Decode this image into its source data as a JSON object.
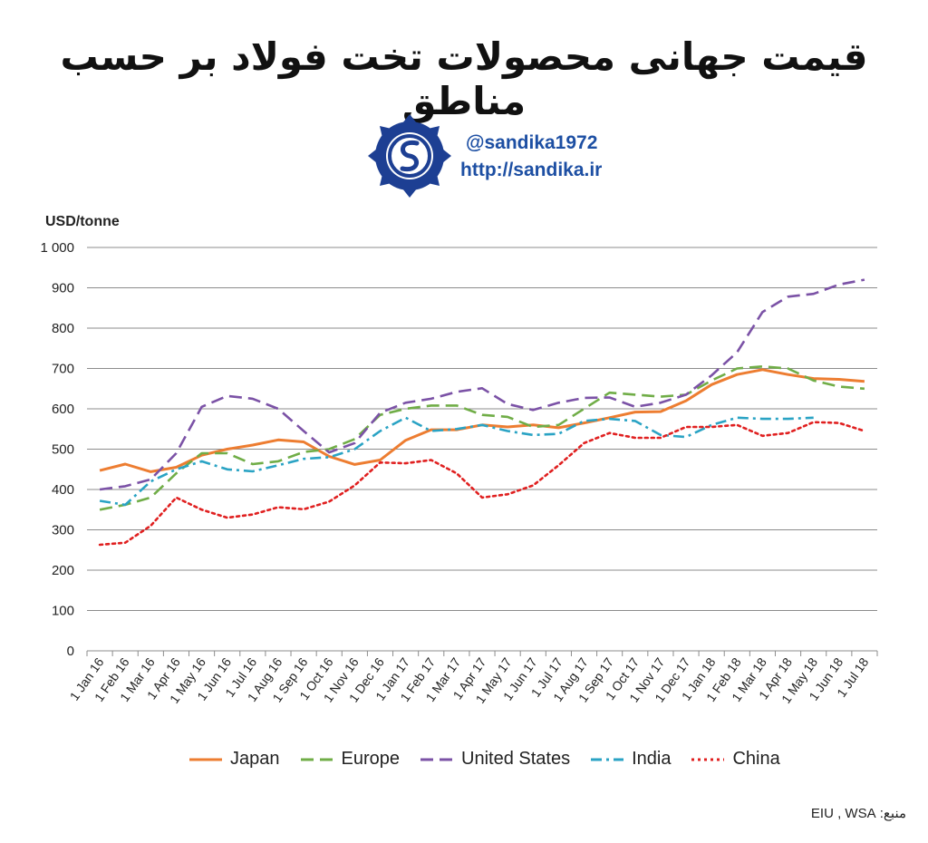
{
  "header": {
    "title": "قیمت جهانی محصولات تخت فولاد بر حسب مناطق",
    "handle": "@sandika1972",
    "website": "http://sandika.ir"
  },
  "source_note": "منبع: EIU , WSA",
  "chart_data": {
    "type": "line",
    "ylabel": "USD/tonne",
    "ylim": [
      0,
      1000
    ],
    "yticks": [
      "0",
      "100",
      "200",
      "300",
      "400",
      "500",
      "600",
      "700",
      "800",
      "900",
      "1 000"
    ],
    "categories": [
      "1 Jan 16",
      "1 Feb 16",
      "1 Mar 16",
      "1 Apr 16",
      "1 May 16",
      "1 Jun 16",
      "1 Jul 16",
      "1 Aug 16",
      "1 Sep 16",
      "1 Oct 16",
      "1 Nov 16",
      "1 Dec 16",
      "1 Jan 17",
      "1 Feb 17",
      "1 Mar 17",
      "1 Apr 17",
      "1 May 17",
      "1 Jun 17",
      "1 Jul 17",
      "1 Aug 17",
      "1 Sep 17",
      "1 Oct 17",
      "1 Nov 17",
      "1 Dec 17",
      "1 Jan 18",
      "1 Feb 18",
      "1 Mar 18",
      "1 Apr 18",
      "1 May 18",
      "1 Jun 18",
      "1 Jul 18"
    ],
    "grid": true,
    "legend_position": "bottom",
    "series": [
      {
        "name": "Japan",
        "color": "#ed7d31",
        "dash": "solid",
        "values": [
          447,
          463,
          444,
          455,
          485,
          500,
          510,
          523,
          518,
          482,
          462,
          473,
          522,
          548,
          548,
          560,
          555,
          560,
          553,
          565,
          578,
          592,
          593,
          620,
          660,
          685,
          697,
          685,
          675,
          673,
          668
        ]
      },
      {
        "name": "Europe",
        "color": "#70ad47",
        "dash": "dash",
        "values": [
          350,
          362,
          380,
          440,
          490,
          490,
          463,
          470,
          493,
          500,
          525,
          585,
          600,
          608,
          608,
          585,
          580,
          555,
          560,
          600,
          640,
          635,
          630,
          635,
          670,
          700,
          705,
          700,
          670,
          655,
          650
        ]
      },
      {
        "name": "United States",
        "color": "#7b52a6",
        "dash": "dash",
        "values": [
          400,
          408,
          425,
          490,
          605,
          632,
          625,
          600,
          545,
          492,
          515,
          590,
          615,
          625,
          642,
          651,
          612,
          597,
          615,
          627,
          628,
          605,
          615,
          635,
          683,
          740,
          840,
          878,
          885,
          908,
          920
        ]
      },
      {
        "name": "India",
        "color": "#2aa3c4",
        "dash": "dashdot",
        "values": [
          372,
          362,
          420,
          450,
          470,
          450,
          445,
          460,
          476,
          480,
          500,
          545,
          578,
          545,
          550,
          560,
          545,
          535,
          538,
          570,
          575,
          570,
          535,
          530,
          560,
          578,
          575,
          575,
          578,
          null,
          null
        ]
      },
      {
        "name": "China",
        "color": "#e02020",
        "dash": "dot",
        "values": [
          263,
          268,
          310,
          380,
          350,
          330,
          338,
          356,
          351,
          370,
          410,
          467,
          465,
          473,
          440,
          380,
          388,
          410,
          460,
          515,
          540,
          528,
          528,
          555,
          555,
          560,
          533,
          540,
          567,
          565,
          545
        ]
      }
    ]
  }
}
